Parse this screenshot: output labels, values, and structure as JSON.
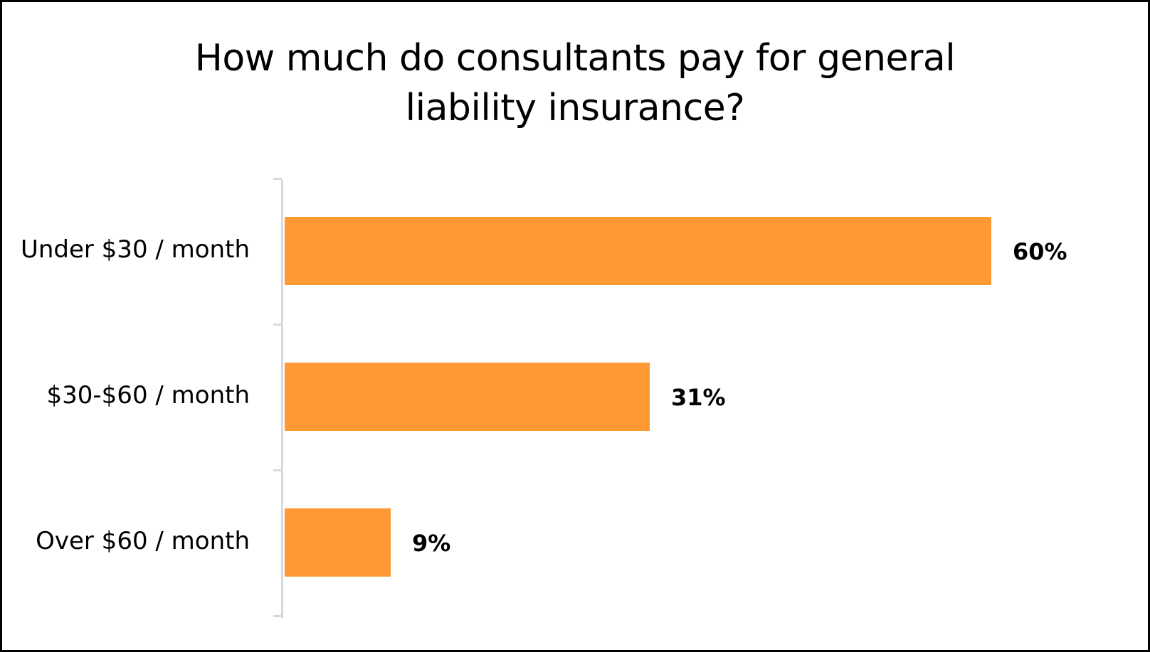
{
  "chart_data": {
    "type": "bar",
    "orientation": "horizontal",
    "title": "How much do consultants pay for general liability insurance?",
    "title_lines": [
      "How much do consultants pay for general",
      "liability insurance?"
    ],
    "categories": [
      "Under $30 / month",
      "$30-$60 / month",
      "Over $60 / month"
    ],
    "values": [
      60,
      31,
      9
    ],
    "value_labels": [
      "60%",
      "31%",
      "9%"
    ],
    "unit": "%",
    "xlabel": "",
    "ylabel": "",
    "xlim": [
      0,
      60
    ],
    "grid": false,
    "legend": null,
    "bar_color": "#FF9933"
  },
  "colors": {
    "bar": "#FF9933",
    "axis": "#D9D9D9",
    "text": "#000000",
    "border": "#000000"
  }
}
